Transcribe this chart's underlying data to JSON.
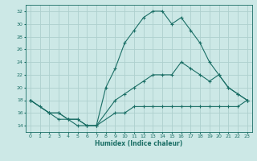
{
  "xlabel": "Humidex (Indice chaleur)",
  "ylabel": "",
  "bg_color": "#cce8e6",
  "grid_color": "#aed0ce",
  "line_color": "#1a6e65",
  "xlim": [
    -0.5,
    23.5
  ],
  "ylim": [
    13,
    33
  ],
  "yticks": [
    14,
    16,
    18,
    20,
    22,
    24,
    26,
    28,
    30,
    32
  ],
  "xticks": [
    0,
    1,
    2,
    3,
    4,
    5,
    6,
    7,
    8,
    9,
    10,
    11,
    12,
    13,
    14,
    15,
    16,
    17,
    18,
    19,
    20,
    21,
    22,
    23
  ],
  "series": [
    {
      "x": [
        0,
        1,
        2,
        3,
        4,
        5,
        6,
        7,
        8,
        9,
        10,
        11,
        12,
        13,
        14,
        15,
        16,
        17,
        18,
        19,
        20,
        21,
        22,
        23
      ],
      "y": [
        18,
        17,
        16,
        16,
        15,
        15,
        14,
        14,
        20,
        23,
        27,
        29,
        31,
        32,
        32,
        30,
        31,
        29,
        27,
        24,
        22,
        20,
        19,
        18
      ]
    },
    {
      "x": [
        0,
        2,
        3,
        4,
        5,
        6,
        7,
        9,
        10,
        11,
        12,
        13,
        14,
        15,
        16,
        17,
        18,
        19,
        20,
        21,
        22,
        23
      ],
      "y": [
        18,
        16,
        16,
        15,
        15,
        14,
        14,
        18,
        19,
        20,
        21,
        22,
        22,
        22,
        24,
        23,
        22,
        21,
        22,
        20,
        19,
        18
      ]
    },
    {
      "x": [
        0,
        2,
        3,
        4,
        5,
        6,
        7,
        9,
        10,
        11,
        12,
        13,
        14,
        15,
        16,
        17,
        18,
        19,
        20,
        21,
        22,
        23
      ],
      "y": [
        18,
        16,
        15,
        15,
        14,
        14,
        14,
        16,
        16,
        17,
        17,
        17,
        17,
        17,
        17,
        17,
        17,
        17,
        17,
        17,
        17,
        18
      ]
    }
  ]
}
